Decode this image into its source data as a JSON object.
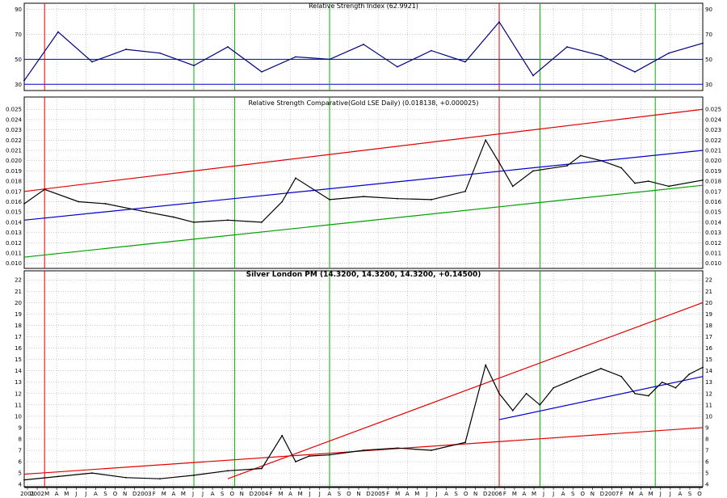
{
  "chart_data": [
    {
      "type": "line",
      "title": "Relative Strength Index (62.9921)",
      "ylim": [
        25,
        95
      ],
      "yticks": [
        "30",
        "50",
        "70",
        "90"
      ],
      "reference_lines": [
        30,
        50
      ],
      "series_color": "#000080",
      "reference_color": "#0000cc",
      "x": [
        0,
        5,
        10,
        15,
        20,
        25,
        30,
        35,
        40,
        45,
        50,
        55,
        60,
        65,
        70,
        75,
        80,
        85,
        90,
        95,
        100
      ],
      "values": [
        33,
        72,
        48,
        58,
        55,
        45,
        60,
        40,
        52,
        50,
        62,
        44,
        57,
        48,
        80,
        37,
        60,
        53,
        40,
        55,
        63
      ]
    },
    {
      "type": "line",
      "title": "Relative Strength Comparative(Gold LSE Daily) (0.018138, +0.000025)",
      "ylim": [
        0.0095,
        0.0262
      ],
      "yticks": [
        "0.025",
        "0.024",
        "0.023",
        "0.022",
        "0.021",
        "0.020",
        "0.019",
        "0.018",
        "0.017",
        "0.016",
        "0.015",
        "0.014",
        "0.013",
        "0.012",
        "0.011",
        "0.010"
      ],
      "series_color": "#000000",
      "x": [
        0,
        3,
        8,
        12,
        18,
        22,
        25,
        30,
        35,
        38,
        40,
        45,
        50,
        55,
        60,
        65,
        68,
        70,
        72,
        75,
        80,
        82,
        85,
        88,
        90,
        92,
        95,
        100
      ],
      "values": [
        0.0158,
        0.0172,
        0.016,
        0.0158,
        0.015,
        0.0145,
        0.014,
        0.0142,
        0.014,
        0.016,
        0.0183,
        0.0162,
        0.0165,
        0.0163,
        0.0162,
        0.017,
        0.022,
        0.0198,
        0.0175,
        0.019,
        0.0195,
        0.0205,
        0.02,
        0.0193,
        0.0178,
        0.018,
        0.0175,
        0.0181
      ],
      "trendlines": [
        {
          "color": "#e00000",
          "from": [
            0,
            0.017
          ],
          "to": [
            100,
            0.025
          ]
        },
        {
          "color": "#00a000",
          "from": [
            0,
            0.0106
          ],
          "to": [
            100,
            0.0176
          ]
        },
        {
          "color": "#0000cc",
          "from": [
            0,
            0.0142
          ],
          "to": [
            100,
            0.021
          ]
        }
      ]
    },
    {
      "type": "line",
      "title": "Silver London PM (14.3200, 14.3200, 14.3200, +0.14500)",
      "ylim": [
        3.8,
        22.8
      ],
      "yticks": [
        "22",
        "21",
        "20",
        "19",
        "18",
        "17",
        "16",
        "15",
        "14",
        "13",
        "12",
        "11",
        "10",
        "9",
        "8",
        "7",
        "6",
        "5",
        "4"
      ],
      "series_color": "#000000",
      "x": [
        0,
        5,
        10,
        15,
        20,
        25,
        30,
        35,
        38,
        40,
        42,
        45,
        50,
        55,
        60,
        65,
        68,
        70,
        72,
        74,
        76,
        78,
        80,
        82,
        85,
        88,
        90,
        92,
        94,
        96,
        98,
        100
      ],
      "values": [
        4.4,
        4.7,
        5.0,
        4.6,
        4.5,
        4.8,
        5.2,
        5.4,
        8.3,
        6.0,
        6.5,
        6.6,
        7.0,
        7.2,
        7.0,
        7.7,
        14.5,
        12.0,
        10.5,
        12.0,
        11.0,
        12.5,
        13.0,
        13.5,
        14.2,
        13.5,
        12.0,
        11.8,
        13.0,
        12.5,
        13.7,
        14.3
      ],
      "trendlines": [
        {
          "color": "#e00000",
          "from": [
            30,
            4.5
          ],
          "to": [
            100,
            20.0
          ]
        },
        {
          "color": "#e00000",
          "from": [
            0,
            4.9
          ],
          "to": [
            100,
            9.0
          ]
        },
        {
          "color": "#0000cc",
          "from": [
            70,
            9.7
          ],
          "to": [
            100,
            13.5
          ]
        }
      ]
    }
  ],
  "x_axis": {
    "tick_labels": [
      "2001",
      "2002",
      "M",
      "A",
      "M",
      "J",
      "J",
      "A",
      "S",
      "O",
      "N",
      "D",
      "2003",
      "F",
      "M",
      "A",
      "M",
      "J",
      "J",
      "A",
      "S",
      "O",
      "N",
      "D",
      "2004",
      "F",
      "M",
      "A",
      "M",
      "J",
      "J",
      "A",
      "S",
      "O",
      "N",
      "D",
      "2005",
      "F",
      "M",
      "A",
      "M",
      "J",
      "J",
      "A",
      "S",
      "O",
      "N",
      "D",
      "2006",
      "F",
      "M",
      "A",
      "M",
      "J",
      "J",
      "A",
      "S",
      "O",
      "N",
      "D",
      "2007",
      "F",
      "M",
      "A",
      "M",
      "J",
      "J",
      "A",
      "S",
      "O"
    ]
  },
  "vertical_markers": [
    {
      "color": "#e00000",
      "x": 3
    },
    {
      "color": "#00b000",
      "x": 25
    },
    {
      "color": "#00b000",
      "x": 31
    },
    {
      "color": "#00b000",
      "x": 45
    },
    {
      "color": "#e00000",
      "x": 70
    },
    {
      "color": "#00b000",
      "x": 76
    },
    {
      "color": "#00b000",
      "x": 93
    }
  ]
}
